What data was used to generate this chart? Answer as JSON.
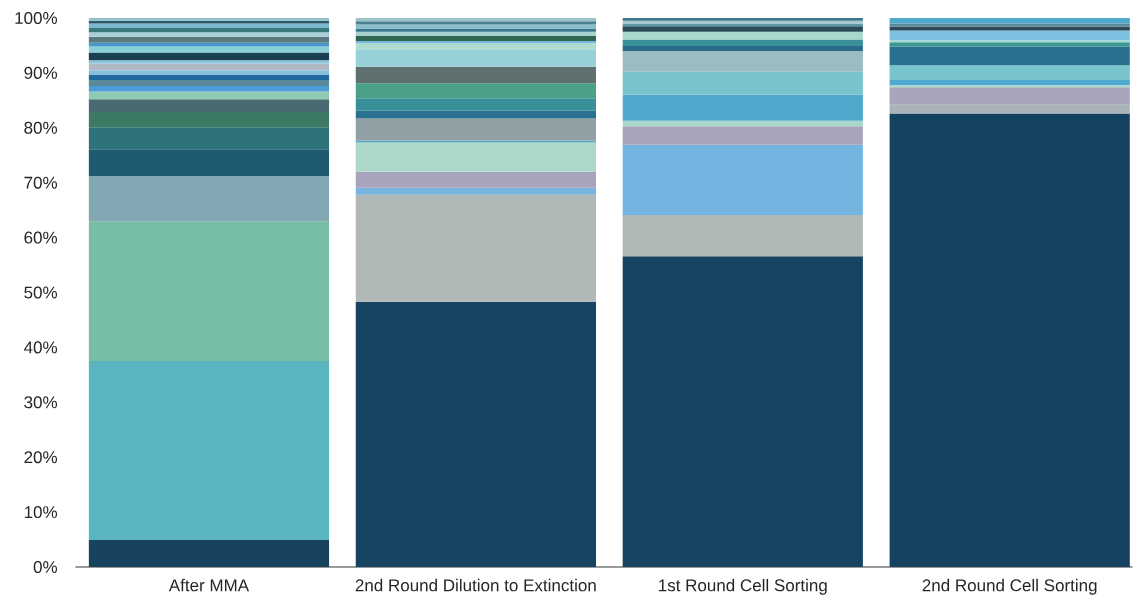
{
  "chart_data": {
    "type": "bar",
    "stacked": true,
    "categories": [
      "After MMA",
      "2nd Round Dilution to Extinction",
      "1st Round Cell Sorting",
      "2nd Round Cell Sorting"
    ],
    "ylim": [
      0,
      100
    ],
    "yticks": [
      {
        "value": 0,
        "label": "0%"
      },
      {
        "value": 10,
        "label": "10%"
      },
      {
        "value": 20,
        "label": "20%"
      },
      {
        "value": 30,
        "label": "30%"
      },
      {
        "value": 40,
        "label": "40%"
      },
      {
        "value": 50,
        "label": "50%"
      },
      {
        "value": 60,
        "label": "60%"
      },
      {
        "value": 70,
        "label": "70%"
      },
      {
        "value": 80,
        "label": "80%"
      },
      {
        "value": 90,
        "label": "90%"
      },
      {
        "value": 100,
        "label": "100%"
      }
    ],
    "series": [
      {
        "values": [
          4.9,
          48.3,
          56.6,
          82.6
        ],
        "colors": [
          "#17435f",
          "#174462",
          "#174462",
          "#164262"
        ]
      },
      {
        "values": [
          32.6,
          19.5,
          7.5,
          1.6
        ],
        "colors": [
          "#5bb5c0",
          "#b0b8b8",
          "#b0b8b8",
          "#a8b4b8"
        ]
      },
      {
        "values": [
          25.5,
          1.3,
          12.8,
          3.2
        ],
        "colors": [
          "#78bda6",
          "#78b4e0",
          "#74b4e0",
          "#a8a4bc"
        ]
      },
      {
        "values": [
          8.2,
          2.9,
          3.4,
          0.4
        ],
        "colors": [
          "#82a9b3",
          "#a8a4bc",
          "#a8a4bc",
          "#a8d8d0"
        ]
      },
      {
        "values": [
          4.9,
          5.3,
          1.0,
          0.9
        ],
        "colors": [
          "#1f5a70",
          "#acd8cc",
          "#a8d8cc",
          "#50a8d0"
        ]
      },
      {
        "values": [
          4.0,
          0.4,
          4.7,
          2.7
        ],
        "colors": [
          "#2e7377",
          "#5aa8c0",
          "#50a8cc",
          "#78c4cc"
        ]
      },
      {
        "values": [
          2.8,
          4.0,
          4.2,
          3.4
        ],
        "colors": [
          "#3c7a64",
          "#90a0a4",
          "#78c4cc",
          "#2a7090"
        ]
      },
      {
        "values": [
          2.3,
          1.4,
          3.8,
          0.8
        ],
        "colors": [
          "#4a6a72",
          "#2a7090",
          "#9cbcc4",
          "#3a9890"
        ]
      },
      {
        "values": [
          1.4,
          2.3,
          0.9,
          0.4
        ],
        "colors": [
          "#8fcab4",
          "#3a9098",
          "#2a6a8a",
          "#a8d8d8"
        ]
      },
      {
        "values": [
          1.0,
          2.7,
          1.2,
          1.7
        ],
        "colors": [
          "#4a9bd8",
          "#4aa088",
          "#3a9098",
          "#7ec0e0"
        ]
      },
      {
        "values": [
          1.1,
          3.0,
          1.4,
          0.7
        ],
        "colors": [
          "#5a8a9a",
          "#5e7070",
          "#a8d8cc",
          "#2a4a58"
        ]
      },
      {
        "values": [
          0.9,
          3.2,
          1.0,
          0.6
        ],
        "colors": [
          "#2268a0",
          "#98d0d8",
          "#2a4a58",
          "#5a8898"
        ]
      },
      {
        "values": [
          0.9,
          1.1,
          0.5,
          1.0
        ],
        "colors": [
          "#86c0dc",
          "#b0dcd0",
          "#5a98a8",
          "#50a8cc"
        ]
      },
      {
        "values": [
          1.2,
          0.4,
          0.5,
          null
        ],
        "colors": [
          "#b0b8c8",
          "#78b8e0",
          "#a8c8d0",
          null
        ]
      },
      {
        "values": [
          0.6,
          0.9,
          0.5,
          null
        ],
        "colors": [
          "#8ac8e0",
          "#2e6450",
          "#3a7890",
          null
        ]
      },
      {
        "values": [
          1.4,
          0.8,
          null,
          null
        ],
        "colors": [
          "#1a3f50",
          "#a8d0d0",
          null,
          null
        ]
      },
      {
        "values": [
          1.1,
          0.6,
          null,
          null
        ],
        "colors": [
          "#88d0d8",
          "#3a7890",
          null,
          null
        ]
      },
      {
        "values": [
          0.7,
          0.7,
          null,
          null
        ],
        "colors": [
          "#4898d0",
          "#88c0d0",
          null,
          null
        ]
      },
      {
        "values": [
          1.1,
          0.6,
          null,
          null
        ],
        "colors": [
          "#5a7a80",
          "#4a8090",
          null,
          null
        ]
      },
      {
        "values": [
          0.8,
          0.6,
          null,
          null
        ],
        "colors": [
          "#a8d0d8",
          "#9ac4cc",
          null,
          null
        ]
      },
      {
        "values": [
          0.8,
          null,
          null,
          null
        ],
        "colors": [
          "#3a7880",
          null,
          null,
          null
        ]
      },
      {
        "values": [
          0.8,
          null,
          null,
          null
        ],
        "colors": [
          "#7ab8d0",
          null,
          null,
          null
        ]
      },
      {
        "values": [
          0.5,
          null,
          null,
          null
        ],
        "colors": [
          "#2a5a68",
          null,
          null,
          null
        ]
      },
      {
        "values": [
          0.5,
          null,
          null,
          null
        ],
        "colors": [
          "#90c0c8",
          null,
          null,
          null
        ]
      }
    ]
  }
}
